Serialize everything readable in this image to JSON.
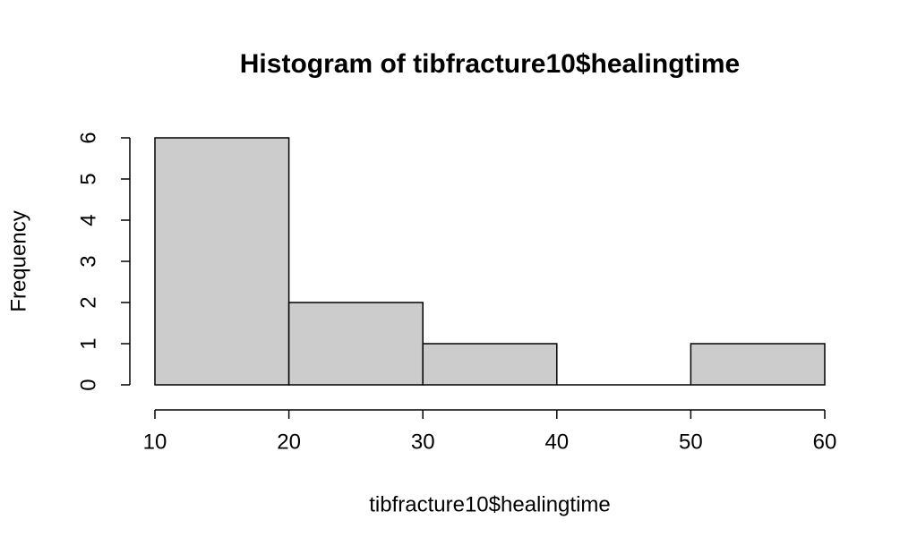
{
  "chart_data": {
    "type": "histogram",
    "title": "Histogram of tibfracture10$healingtime",
    "x_label": "tibfracture10$healingtime",
    "y_label": "Frequency",
    "bins": [
      10,
      20,
      30,
      40,
      50,
      60
    ],
    "values": [
      6,
      2,
      1,
      0,
      1
    ],
    "color": "#cccccc",
    "xlim": [
      10,
      60
    ],
    "xticks": [
      10,
      20,
      30,
      40,
      50,
      60
    ],
    "ylim": [
      0,
      6
    ],
    "yticks": [
      0,
      1,
      2,
      3,
      4,
      5,
      6
    ]
  }
}
